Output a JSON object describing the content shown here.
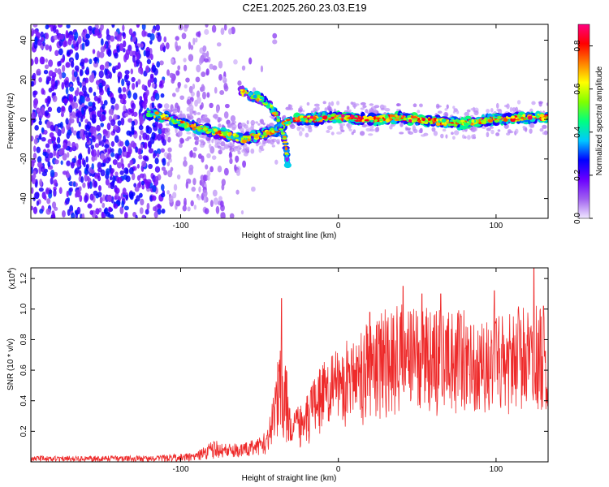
{
  "title": "C2E1.2025.260.23.03.E19",
  "chart_data": [
    {
      "type": "heatmap",
      "xlabel": "Height of straight line (km)",
      "ylabel": "Frequency (Hz)",
      "xlim": [
        -195,
        133
      ],
      "ylim": [
        -50,
        48
      ],
      "xticks": [
        -100,
        0,
        100
      ],
      "xtick_labels": [
        "-100",
        "0",
        "100"
      ],
      "yticks": [
        -40,
        -20,
        0,
        20,
        40
      ],
      "ytick_labels": [
        "-40",
        "-20",
        "0",
        "20",
        "40"
      ],
      "ridge": [
        {
          "x": -120,
          "y": 3
        },
        {
          "x": -110,
          "y": 1
        },
        {
          "x": -100,
          "y": -2
        },
        {
          "x": -90,
          "y": -4
        },
        {
          "x": -80,
          "y": -6
        },
        {
          "x": -70,
          "y": -8
        },
        {
          "x": -60,
          "y": -10
        },
        {
          "x": -50,
          "y": -8
        },
        {
          "x": -40,
          "y": -6
        },
        {
          "x": -30,
          "y": 0
        },
        {
          "x": -20,
          "y": 0
        },
        {
          "x": 0,
          "y": 1
        },
        {
          "x": 20,
          "y": 0
        },
        {
          "x": 40,
          "y": 1
        },
        {
          "x": 60,
          "y": -1
        },
        {
          "x": 80,
          "y": -2
        },
        {
          "x": 100,
          "y": 0
        },
        {
          "x": 120,
          "y": 1
        },
        {
          "x": 133,
          "y": 1
        }
      ],
      "branch": [
        {
          "x": -62,
          "y": 14
        },
        {
          "x": -55,
          "y": 12
        },
        {
          "x": -48,
          "y": 10
        },
        {
          "x": -42,
          "y": 5
        },
        {
          "x": -38,
          "y": 0
        },
        {
          "x": -34,
          "y": -10
        },
        {
          "x": -32,
          "y": -22
        }
      ]
    },
    {
      "type": "line",
      "xlabel": "Height of straight line (km)",
      "ylabel": "SNR (10 * v/v)",
      "scale_label": "(x10",
      "scale_exponent": "4",
      "scale_suffix": ")",
      "xlim": [
        -195,
        133
      ],
      "ylim": [
        0,
        1.27
      ],
      "xticks": [
        -100,
        0,
        100
      ],
      "xtick_labels": [
        "-100",
        "0",
        "100"
      ],
      "yticks": [
        0.2,
        0.4,
        0.6,
        0.8,
        1.0,
        1.2
      ],
      "ytick_labels": [
        "0.2",
        "0.4",
        "0.6",
        "0.8",
        "1.0",
        "1.2"
      ],
      "series": [
        {
          "name": "SNR",
          "color": "#ee2a2a",
          "envelope": [
            {
              "x": -195,
              "lo": 0.0,
              "hi": 0.04
            },
            {
              "x": -120,
              "lo": 0.0,
              "hi": 0.04
            },
            {
              "x": -90,
              "lo": 0.0,
              "hi": 0.06
            },
            {
              "x": -80,
              "lo": 0.02,
              "hi": 0.14
            },
            {
              "x": -60,
              "lo": 0.03,
              "hi": 0.12
            },
            {
              "x": -45,
              "lo": 0.05,
              "hi": 0.2
            },
            {
              "x": -35,
              "lo": 0.15,
              "hi": 0.9
            },
            {
              "x": -30,
              "lo": 0.08,
              "hi": 0.3
            },
            {
              "x": -20,
              "lo": 0.1,
              "hi": 0.45
            },
            {
              "x": -10,
              "lo": 0.2,
              "hi": 0.65
            },
            {
              "x": 0,
              "lo": 0.2,
              "hi": 0.75
            },
            {
              "x": 20,
              "lo": 0.25,
              "hi": 0.95
            },
            {
              "x": 40,
              "lo": 0.3,
              "hi": 1.05
            },
            {
              "x": 60,
              "lo": 0.3,
              "hi": 1.0
            },
            {
              "x": 80,
              "lo": 0.3,
              "hi": 1.0
            },
            {
              "x": 100,
              "lo": 0.3,
              "hi": 0.95
            },
            {
              "x": 120,
              "lo": 0.3,
              "hi": 1.05
            },
            {
              "x": 133,
              "lo": 0.3,
              "hi": 1.0
            }
          ],
          "peaks": [
            {
              "x": -36,
              "y": 1.07
            },
            {
              "x": 20,
              "y": 0.98
            },
            {
              "x": 41,
              "y": 1.15
            },
            {
              "x": 53,
              "y": 1.1
            },
            {
              "x": 65,
              "y": 1.1
            },
            {
              "x": 99,
              "y": 1.12
            },
            {
              "x": 124,
              "y": 1.27
            },
            {
              "x": 130,
              "y": 1.02
            }
          ]
        }
      ]
    }
  ],
  "colorbar": {
    "label": "Normalized spectral amplitude",
    "range": [
      0,
      0.9
    ],
    "ticks": [
      0.0,
      0.2,
      0.4,
      0.6,
      0.8
    ],
    "tick_labels": [
      "0.0",
      "0.2",
      "0.4",
      "0.6",
      "0.8"
    ],
    "colors": [
      "#f0e8ff",
      "#a060f0",
      "#6a00ff",
      "#0000ff",
      "#00c8ff",
      "#00ff80",
      "#80ff00",
      "#ffff00",
      "#ff8000",
      "#ff0000",
      "#ff0080"
    ]
  }
}
